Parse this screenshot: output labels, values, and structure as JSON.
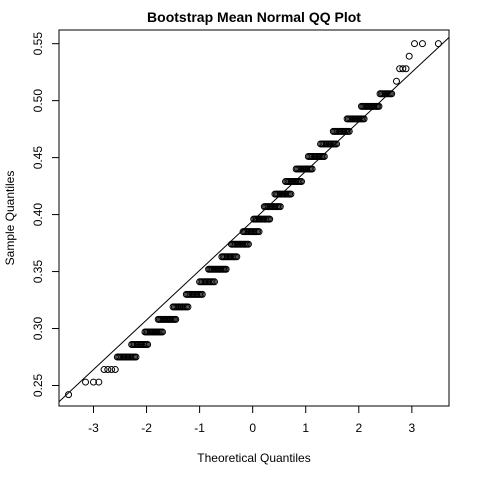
{
  "chart_data": {
    "type": "scatter",
    "title": "Bootstrap Mean Normal QQ Plot",
    "xlabel": "Theoretical Quantiles",
    "ylabel": "Sample Quantiles",
    "xlim": [
      -3.65,
      3.7
    ],
    "ylim": [
      0.232,
      0.562
    ],
    "xticks": [
      -3,
      -2,
      -1,
      0,
      1,
      2,
      3
    ],
    "xtick_labels": [
      "-3",
      "-2",
      "-1",
      "0",
      "1",
      "2",
      "3"
    ],
    "yticks": [
      0.25,
      0.3,
      0.35,
      0.4,
      0.45,
      0.5,
      0.55
    ],
    "ytick_labels": [
      "0.25",
      "0.30",
      "0.35",
      "0.40",
      "0.45",
      "0.50",
      "0.55"
    ],
    "reference_line": {
      "intercept": 0.3945,
      "slope": 0.0435
    },
    "tail_points": [
      {
        "x": -3.47,
        "y": 0.242
      },
      {
        "x": -3.15,
        "y": 0.253
      },
      {
        "x": -3.0,
        "y": 0.253
      },
      {
        "x": -2.9,
        "y": 0.253
      },
      {
        "x": -2.8,
        "y": 0.264
      },
      {
        "x": -2.73,
        "y": 0.264
      },
      {
        "x": -2.66,
        "y": 0.264
      },
      {
        "x": -2.59,
        "y": 0.264
      },
      {
        "x": 2.71,
        "y": 0.517
      },
      {
        "x": 2.77,
        "y": 0.528
      },
      {
        "x": 2.83,
        "y": 0.528
      },
      {
        "x": 2.89,
        "y": 0.528
      },
      {
        "x": 2.95,
        "y": 0.539
      },
      {
        "x": 3.05,
        "y": 0.55
      },
      {
        "x": 3.2,
        "y": 0.55
      },
      {
        "x": 3.5,
        "y": 0.55
      }
    ],
    "steps": [
      {
        "y": 0.275,
        "x_start": -2.55,
        "x_end": -2.2
      },
      {
        "y": 0.286,
        "x_start": -2.28,
        "x_end": -1.98
      },
      {
        "y": 0.297,
        "x_start": -2.03,
        "x_end": -1.7
      },
      {
        "y": 0.308,
        "x_start": -1.78,
        "x_end": -1.45
      },
      {
        "y": 0.319,
        "x_start": -1.5,
        "x_end": -1.22
      },
      {
        "y": 0.33,
        "x_start": -1.25,
        "x_end": -0.95
      },
      {
        "y": 0.341,
        "x_start": -1.0,
        "x_end": -0.72
      },
      {
        "y": 0.352,
        "x_start": -0.83,
        "x_end": -0.5
      },
      {
        "y": 0.363,
        "x_start": -0.58,
        "x_end": -0.3
      },
      {
        "y": 0.374,
        "x_start": -0.4,
        "x_end": -0.08
      },
      {
        "y": 0.385,
        "x_start": -0.18,
        "x_end": 0.12
      },
      {
        "y": 0.396,
        "x_start": 0.02,
        "x_end": 0.32
      },
      {
        "y": 0.407,
        "x_start": 0.22,
        "x_end": 0.52
      },
      {
        "y": 0.418,
        "x_start": 0.42,
        "x_end": 0.72
      },
      {
        "y": 0.429,
        "x_start": 0.62,
        "x_end": 0.92
      },
      {
        "y": 0.44,
        "x_start": 0.82,
        "x_end": 1.12
      },
      {
        "y": 0.451,
        "x_start": 1.05,
        "x_end": 1.35
      },
      {
        "y": 0.462,
        "x_start": 1.28,
        "x_end": 1.58
      },
      {
        "y": 0.473,
        "x_start": 1.52,
        "x_end": 1.82
      },
      {
        "y": 0.484,
        "x_start": 1.78,
        "x_end": 2.1
      },
      {
        "y": 0.495,
        "x_start": 2.05,
        "x_end": 2.38
      },
      {
        "y": 0.506,
        "x_start": 2.4,
        "x_end": 2.62
      }
    ]
  }
}
